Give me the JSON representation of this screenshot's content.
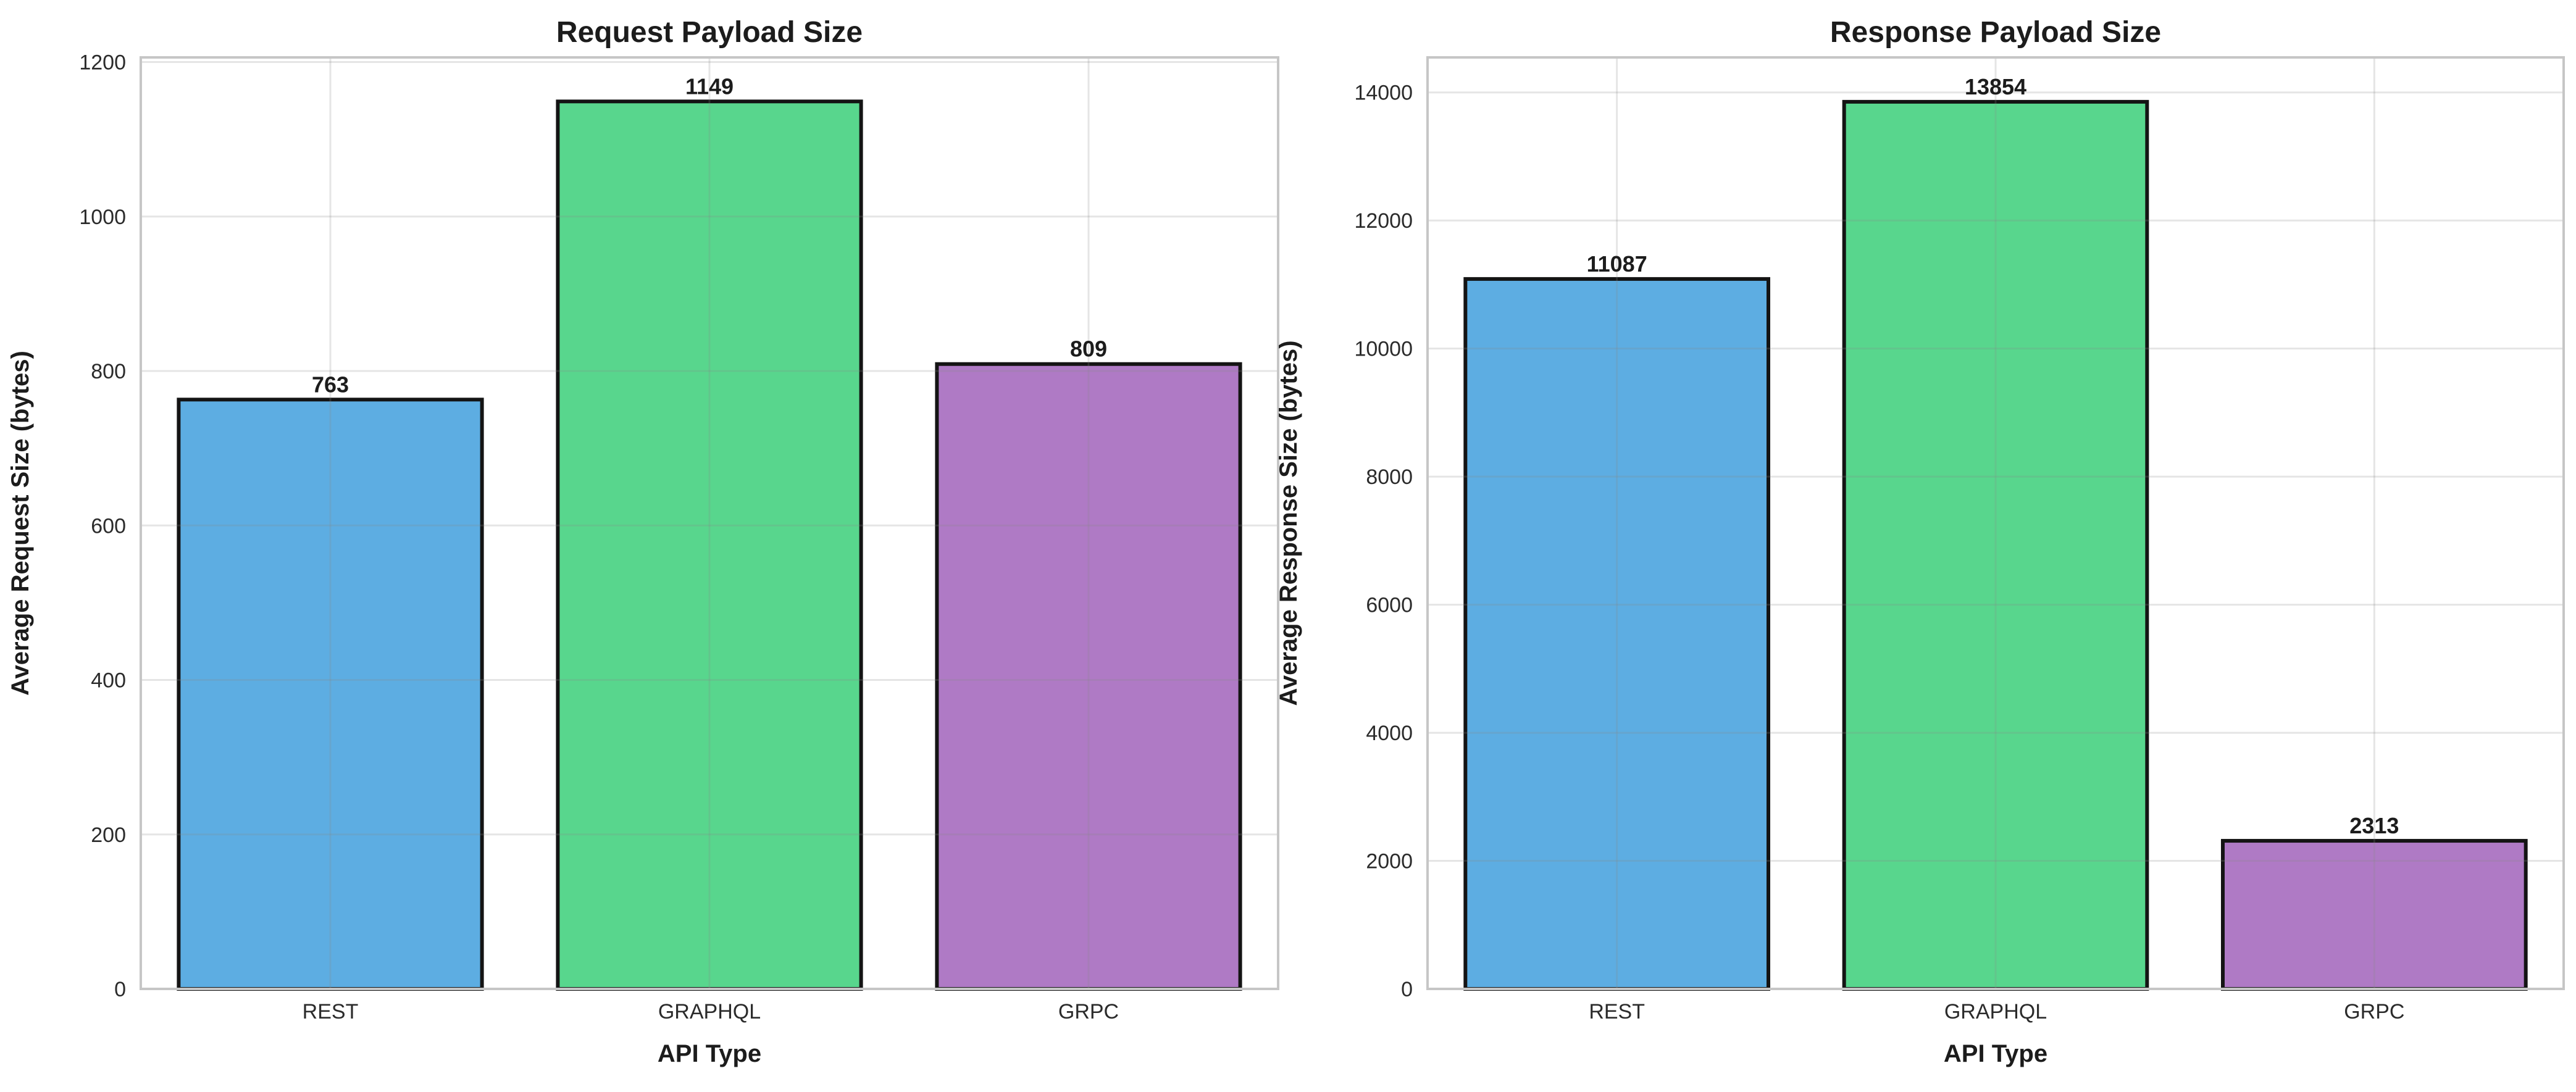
{
  "figure": {
    "background": "#ffffff"
  },
  "style": {
    "grid_color": "#8a8a8a",
    "grid_opacity": 0.22,
    "spine_color": "#c6c6c6",
    "text_color": "#1c1c1c",
    "bar_edge_color": "#141414"
  },
  "chart_data": [
    {
      "type": "bar",
      "title": "Request Payload Size",
      "xlabel": "API Type",
      "ylabel": "Average Request Size (bytes)",
      "categories": [
        "REST",
        "GRAPHQL",
        "GRPC"
      ],
      "values": [
        763,
        1149,
        809
      ],
      "value_labels": [
        "763",
        "1149",
        "809"
      ],
      "bar_colors": [
        "#5DADE2",
        "#58D68D",
        "#AF7AC5"
      ],
      "ylim": [
        0,
        1206
      ],
      "yticks": [
        0,
        200,
        400,
        600,
        800,
        1000,
        1200
      ],
      "ytick_labels": [
        "0",
        "200",
        "400",
        "600",
        "800",
        "1000",
        "1200"
      ],
      "grid": true,
      "legend": null
    },
    {
      "type": "bar",
      "title": "Response Payload Size",
      "xlabel": "API Type",
      "ylabel": "Average Response Size (bytes)",
      "categories": [
        "REST",
        "GRAPHQL",
        "GRPC"
      ],
      "values": [
        11087,
        13854,
        2313
      ],
      "value_labels": [
        "11087",
        "13854",
        "2313"
      ],
      "bar_colors": [
        "#5DADE2",
        "#58D68D",
        "#AF7AC5"
      ],
      "ylim": [
        0,
        14547
      ],
      "yticks": [
        0,
        2000,
        4000,
        6000,
        8000,
        10000,
        12000,
        14000
      ],
      "ytick_labels": [
        "0",
        "2000",
        "4000",
        "6000",
        "8000",
        "10000",
        "12000",
        "14000"
      ],
      "grid": true,
      "legend": null
    }
  ]
}
